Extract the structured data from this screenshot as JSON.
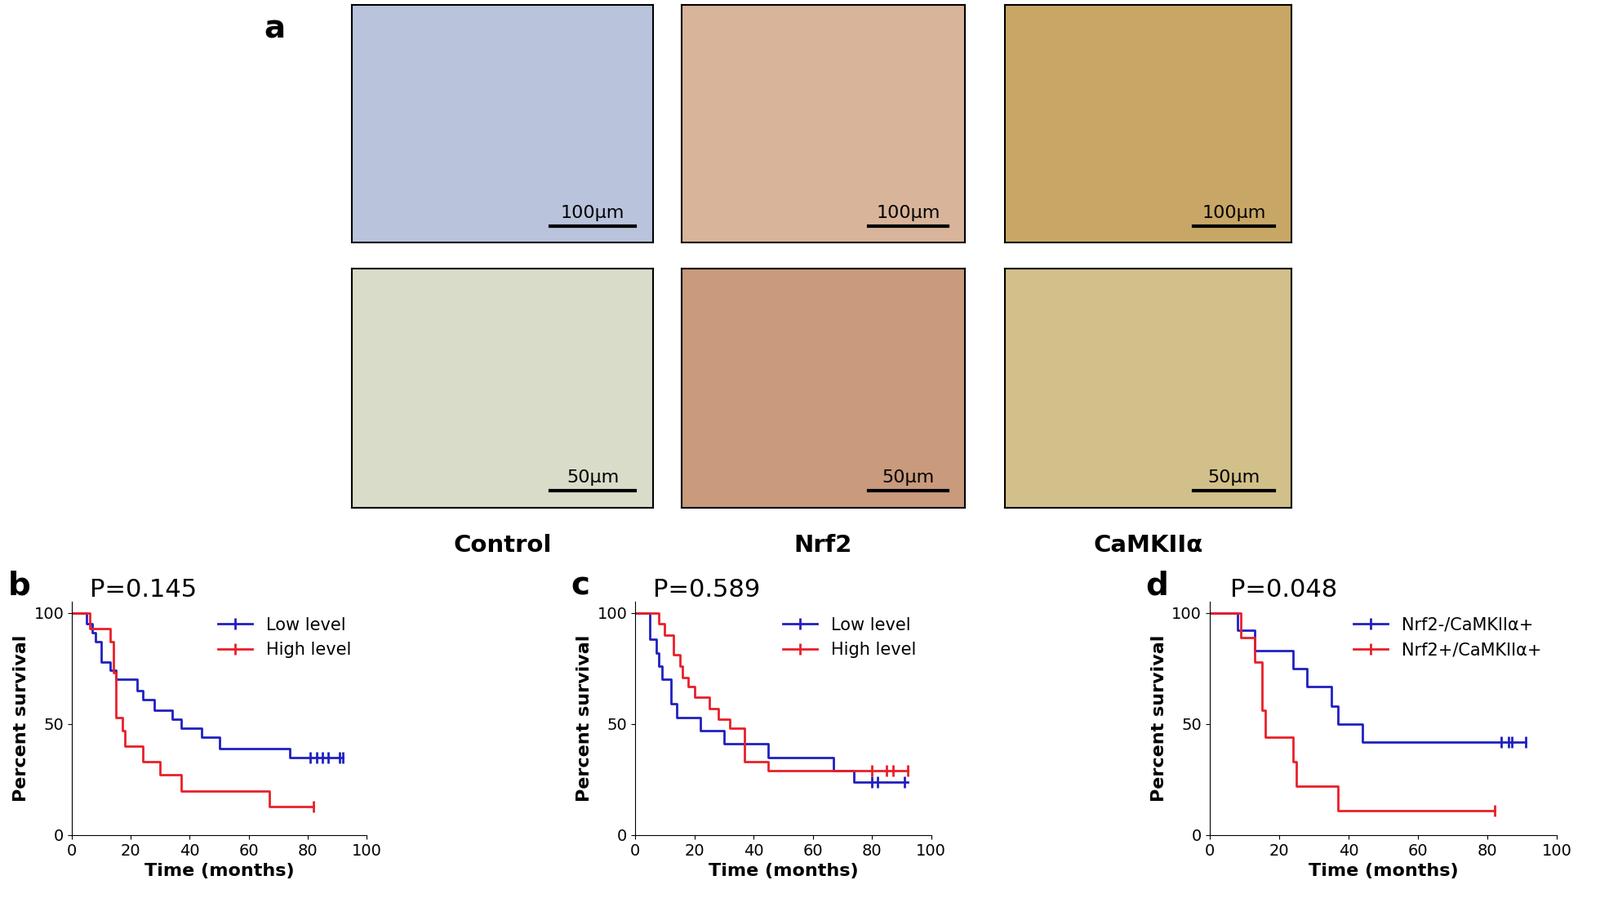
{
  "images": {
    "panel_label": "a",
    "columns": [
      {
        "label": "Control",
        "top_scale": "100μm",
        "bottom_scale": "50μm"
      },
      {
        "label": "Nrf2",
        "top_scale": "100μm",
        "bottom_scale": "50μm"
      },
      {
        "label": "CaMKIIα",
        "top_scale": "100μm",
        "bottom_scale": "50μm"
      }
    ]
  },
  "chart_data": [
    {
      "type": "survival",
      "panel_label": "b",
      "annotation": "P=0.145",
      "x_label": "Time (months)",
      "y_label": "Percent survival",
      "xlim": [
        0,
        100
      ],
      "xticks": [
        0,
        20,
        40,
        60,
        80,
        100
      ],
      "ylim": [
        0,
        105
      ],
      "yticks": [
        0,
        50,
        100
      ],
      "legend": "upper right",
      "series": [
        {
          "name": "Low level",
          "color": "#2020c0",
          "marker": "|",
          "x": [
            0,
            5,
            7,
            8,
            10,
            13,
            15,
            22,
            24,
            28,
            34,
            37,
            44,
            50,
            74,
            92
          ],
          "values": [
            100,
            95,
            91,
            87,
            78,
            74,
            70,
            65,
            61,
            56,
            52,
            48,
            44,
            39,
            35,
            35
          ],
          "censored": [
            81,
            83,
            85,
            87,
            91,
            92
          ]
        },
        {
          "name": "High level",
          "color": "#e8202a",
          "marker": "|",
          "x": [
            0,
            6,
            13,
            14,
            15,
            17,
            18,
            24,
            30,
            37,
            67,
            82
          ],
          "values": [
            100,
            93,
            87,
            73,
            53,
            47,
            40,
            33,
            27,
            20,
            13,
            13
          ],
          "censored": [
            82
          ]
        }
      ]
    },
    {
      "type": "survival",
      "panel_label": "c",
      "annotation": "P=0.589",
      "x_label": "Time (months)",
      "y_label": "Percent survival",
      "xlim": [
        0,
        100
      ],
      "xticks": [
        0,
        20,
        40,
        60,
        80,
        100
      ],
      "ylim": [
        0,
        105
      ],
      "yticks": [
        0,
        50,
        100
      ],
      "legend": "upper right",
      "series": [
        {
          "name": "Low level",
          "color": "#2020c0",
          "marker": "|",
          "x": [
            0,
            5,
            7,
            8,
            9,
            12,
            14,
            22,
            30,
            45,
            67,
            74,
            92
          ],
          "values": [
            100,
            88,
            82,
            76,
            70,
            59,
            53,
            47,
            41,
            35,
            29,
            24,
            24
          ],
          "censored": [
            80,
            82,
            91
          ]
        },
        {
          "name": "High level",
          "color": "#e8202a",
          "marker": "|",
          "x": [
            0,
            8,
            10,
            13,
            15,
            16,
            18,
            20,
            25,
            28,
            32,
            37,
            45,
            92
          ],
          "values": [
            100,
            95,
            90,
            81,
            76,
            71,
            67,
            62,
            57,
            52,
            48,
            33,
            29,
            29
          ],
          "censored": [
            80,
            85,
            87,
            92
          ]
        }
      ]
    },
    {
      "type": "survival",
      "panel_label": "d",
      "annotation": "P=0.048",
      "x_label": "Time (months)",
      "y_label": "Percent survival",
      "xlim": [
        0,
        100
      ],
      "xticks": [
        0,
        20,
        40,
        60,
        80,
        100
      ],
      "ylim": [
        0,
        105
      ],
      "yticks": [
        0,
        50,
        100
      ],
      "legend": "upper right",
      "series": [
        {
          "name": "Nrf2-/CaMKIIα+",
          "color": "#2020c0",
          "marker": "|",
          "x": [
            0,
            8,
            13,
            24,
            28,
            35,
            37,
            44,
            91
          ],
          "values": [
            100,
            92,
            83,
            75,
            67,
            58,
            50,
            42,
            42
          ],
          "censored": [
            84,
            86,
            87,
            91
          ]
        },
        {
          "name": "Nrf2+/CaMKIIα+",
          "color": "#e8202a",
          "marker": "|",
          "x": [
            0,
            9,
            13,
            15,
            16,
            24,
            25,
            37,
            82
          ],
          "values": [
            100,
            89,
            78,
            56,
            44,
            33,
            22,
            11,
            11
          ],
          "censored": [
            82
          ]
        }
      ]
    }
  ]
}
